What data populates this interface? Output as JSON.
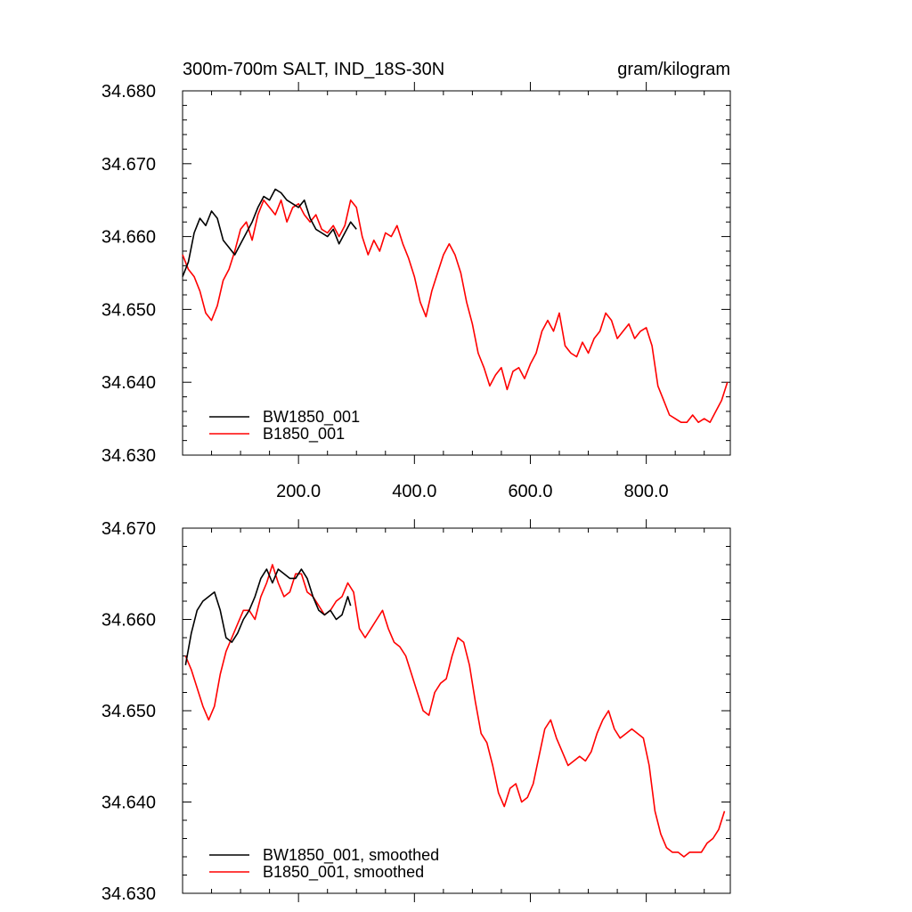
{
  "chart_data": [
    {
      "type": "line",
      "title": "300m-700m SALT, IND_18S-30N",
      "units": "gram/kilogram",
      "xlim": [
        0,
        945
      ],
      "ylim": [
        34.63,
        34.68
      ],
      "xticks": [
        200,
        400,
        600,
        800
      ],
      "xtick_labels": [
        "200.0",
        "400.0",
        "600.0",
        "800.0"
      ],
      "yticks": [
        34.63,
        34.64,
        34.65,
        34.66,
        34.67,
        34.68
      ],
      "ytick_labels": [
        "34.630",
        "34.640",
        "34.650",
        "34.660",
        "34.670",
        "34.680"
      ],
      "legend_position": "bottom-left",
      "series": [
        {
          "name": "BW1850_001",
          "color": "#000000",
          "x": [
            0,
            10,
            20,
            30,
            40,
            50,
            60,
            70,
            80,
            90,
            100,
            110,
            120,
            130,
            140,
            150,
            160,
            170,
            180,
            190,
            200,
            210,
            220,
            230,
            240,
            250,
            260,
            270,
            280,
            290,
            300
          ],
          "y": [
            34.6545,
            34.6565,
            34.6605,
            34.6625,
            34.6615,
            34.6635,
            34.6625,
            34.6595,
            34.6585,
            34.6575,
            34.659,
            34.6605,
            34.662,
            34.664,
            34.6655,
            34.665,
            34.6665,
            34.666,
            34.665,
            34.6645,
            34.664,
            34.665,
            34.6625,
            34.661,
            34.6605,
            34.66,
            34.661,
            34.659,
            34.6605,
            34.662,
            34.661
          ]
        },
        {
          "name": "B1850_001",
          "color": "#ff0000",
          "x": [
            0,
            10,
            20,
            30,
            40,
            50,
            60,
            70,
            80,
            90,
            100,
            110,
            120,
            130,
            140,
            150,
            160,
            170,
            180,
            190,
            200,
            210,
            220,
            230,
            240,
            250,
            260,
            270,
            280,
            290,
            300,
            310,
            320,
            330,
            340,
            350,
            360,
            370,
            380,
            390,
            400,
            410,
            420,
            430,
            440,
            450,
            460,
            470,
            480,
            490,
            500,
            510,
            520,
            530,
            540,
            550,
            560,
            570,
            580,
            590,
            600,
            610,
            620,
            630,
            640,
            650,
            660,
            670,
            680,
            690,
            700,
            710,
            720,
            730,
            740,
            750,
            760,
            770,
            780,
            790,
            800,
            810,
            820,
            830,
            840,
            850,
            860,
            870,
            880,
            890,
            900,
            910,
            920,
            930,
            940
          ],
          "y": [
            34.6575,
            34.6555,
            34.6545,
            34.6525,
            34.6495,
            34.6485,
            34.6505,
            34.654,
            34.6555,
            34.658,
            34.661,
            34.662,
            34.6595,
            34.663,
            34.665,
            34.664,
            34.663,
            34.665,
            34.662,
            34.664,
            34.6645,
            34.663,
            34.662,
            34.663,
            34.661,
            34.6605,
            34.6615,
            34.66,
            34.6615,
            34.665,
            34.664,
            34.66,
            34.6575,
            34.6595,
            34.658,
            34.6605,
            34.66,
            34.6615,
            34.659,
            34.657,
            34.6545,
            34.651,
            34.649,
            34.6525,
            34.655,
            34.6575,
            34.659,
            34.6575,
            34.655,
            34.651,
            34.648,
            34.644,
            34.642,
            34.6395,
            34.641,
            34.642,
            34.639,
            34.6415,
            34.642,
            34.6405,
            34.6425,
            34.644,
            34.647,
            34.6485,
            34.647,
            34.6495,
            34.645,
            34.644,
            34.6435,
            34.6455,
            34.644,
            34.646,
            34.647,
            34.6495,
            34.6485,
            34.646,
            34.647,
            34.648,
            34.646,
            34.647,
            34.6475,
            34.645,
            34.6395,
            34.6375,
            34.6355,
            34.635,
            34.6345,
            34.6345,
            34.6355,
            34.6345,
            34.635,
            34.6345,
            34.636,
            34.6375,
            34.64
          ]
        }
      ]
    },
    {
      "type": "line",
      "xlim": [
        0,
        945
      ],
      "ylim": [
        34.63,
        34.67
      ],
      "yticks": [
        34.63,
        34.64,
        34.65,
        34.66,
        34.67
      ],
      "ytick_labels": [
        "34.630",
        "34.640",
        "34.650",
        "34.660",
        "34.670"
      ],
      "legend_position": "bottom-left",
      "series": [
        {
          "name": "BW1850_001, smoothed",
          "color": "#000000",
          "x": [
            5,
            15,
            25,
            35,
            45,
            55,
            65,
            75,
            85,
            95,
            105,
            115,
            125,
            135,
            145,
            155,
            165,
            175,
            185,
            195,
            205,
            215,
            225,
            235,
            245,
            255,
            265,
            275,
            285,
            290
          ],
          "y": [
            34.655,
            34.6585,
            34.661,
            34.662,
            34.6625,
            34.663,
            34.661,
            34.658,
            34.6575,
            34.6585,
            34.66,
            34.661,
            34.6625,
            34.6645,
            34.6655,
            34.664,
            34.6655,
            34.665,
            34.6645,
            34.6645,
            34.6655,
            34.6645,
            34.6625,
            34.661,
            34.6605,
            34.661,
            34.66,
            34.6605,
            34.6625,
            34.6615
          ]
        },
        {
          "name": "B1850_001, smoothed",
          "color": "#ff0000",
          "x": [
            5,
            15,
            25,
            35,
            45,
            55,
            65,
            75,
            85,
            95,
            105,
            115,
            125,
            135,
            145,
            155,
            165,
            175,
            185,
            195,
            205,
            215,
            225,
            235,
            245,
            255,
            265,
            275,
            285,
            295,
            305,
            315,
            325,
            335,
            345,
            355,
            365,
            375,
            385,
            395,
            405,
            415,
            425,
            435,
            445,
            455,
            465,
            475,
            485,
            495,
            505,
            515,
            525,
            535,
            545,
            555,
            565,
            575,
            585,
            595,
            605,
            615,
            625,
            635,
            645,
            655,
            665,
            675,
            685,
            695,
            705,
            715,
            725,
            735,
            745,
            755,
            765,
            775,
            785,
            795,
            805,
            815,
            825,
            835,
            845,
            855,
            865,
            875,
            885,
            895,
            905,
            915,
            925,
            935
          ],
          "y": [
            34.656,
            34.6545,
            34.6525,
            34.6505,
            34.649,
            34.6505,
            34.654,
            34.6565,
            34.658,
            34.6595,
            34.661,
            34.661,
            34.66,
            34.6625,
            34.664,
            34.666,
            34.664,
            34.6625,
            34.663,
            34.665,
            34.665,
            34.663,
            34.6625,
            34.6615,
            34.6605,
            34.661,
            34.662,
            34.6625,
            34.664,
            34.663,
            34.659,
            34.658,
            34.659,
            34.66,
            34.661,
            34.659,
            34.6575,
            34.657,
            34.656,
            34.654,
            34.652,
            34.65,
            34.6495,
            34.652,
            34.653,
            34.6535,
            34.656,
            34.658,
            34.6575,
            34.655,
            34.651,
            34.6475,
            34.6465,
            34.644,
            34.641,
            34.6395,
            34.6415,
            34.642,
            34.64,
            34.6405,
            34.642,
            34.645,
            34.648,
            34.649,
            34.647,
            34.6455,
            34.644,
            34.6445,
            34.645,
            34.6445,
            34.6455,
            34.6475,
            34.649,
            34.65,
            34.648,
            34.647,
            34.6475,
            34.648,
            34.6475,
            34.647,
            34.644,
            34.639,
            34.6365,
            34.635,
            34.6345,
            34.6345,
            34.634,
            34.6345,
            34.6345,
            34.6345,
            34.6355,
            34.636,
            34.637,
            34.639
          ]
        }
      ]
    }
  ]
}
